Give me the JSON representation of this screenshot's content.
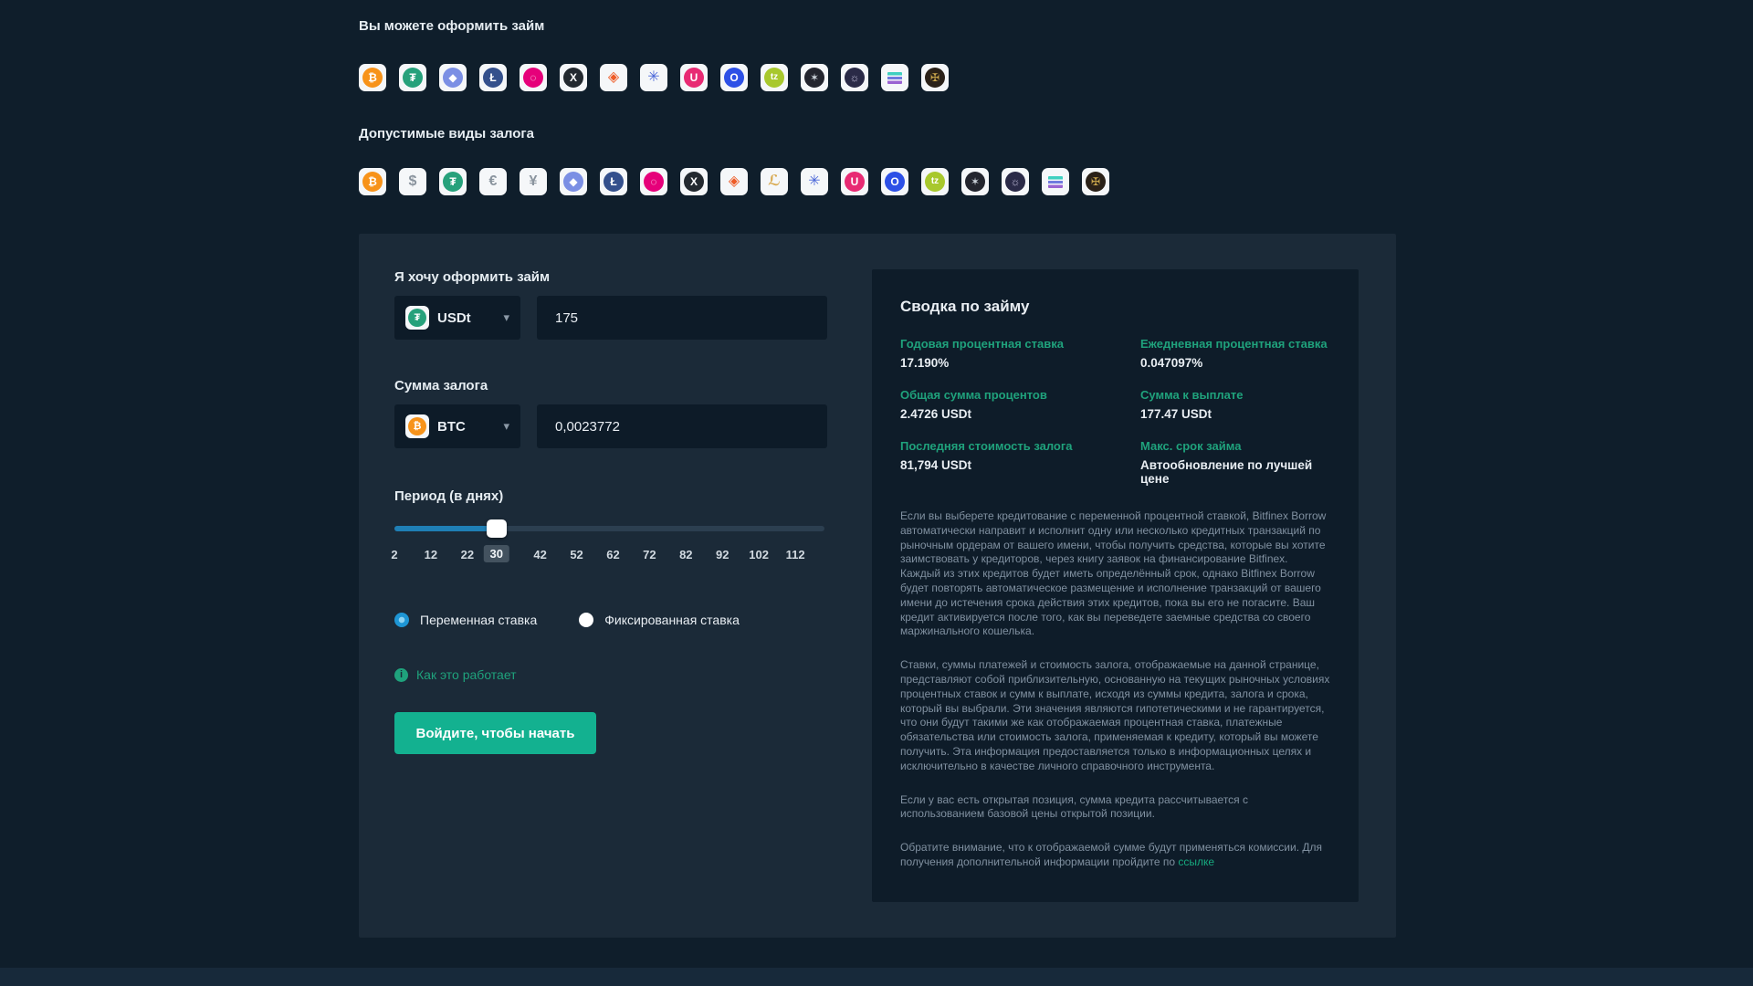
{
  "page": {
    "headline_borrow": "Вы можете оформить займ",
    "headline_collateral": "Допустимые виды залога"
  },
  "coins": {
    "btc": {
      "name": "bitcoin",
      "glyph": "₿",
      "circle": "#f7931a",
      "fg": "#ffffff"
    },
    "usd": {
      "name": "us-dollar",
      "glyph": "$",
      "circle": null,
      "fg": "#8a949e"
    },
    "usdt": {
      "name": "tether",
      "glyph": "₮",
      "circle": "#26a17b",
      "fg": "#ffffff"
    },
    "eur": {
      "name": "euro",
      "glyph": "€",
      "circle": null,
      "fg": "#8a949e"
    },
    "jpy": {
      "name": "yen",
      "glyph": "¥",
      "circle": null,
      "fg": "#8a949e"
    },
    "eth": {
      "name": "ethereum",
      "glyph": "◆",
      "circle": "#7b8fe4",
      "fg": "#ffffff"
    },
    "ltc": {
      "name": "litecoin",
      "glyph": "Ł",
      "circle": "#34508c",
      "fg": "#ffffff"
    },
    "dot": {
      "name": "polkadot",
      "glyph": "◌",
      "circle": "#e6007a",
      "fg": "#ffffff"
    },
    "xrp": {
      "name": "xrp",
      "glyph": "X",
      "circle": "#23292f",
      "fg": "#ffffff"
    },
    "trx": {
      "name": "tron",
      "glyph": "◈",
      "circle": null,
      "fg": "#ee5c28"
    },
    "leo": {
      "name": "leo",
      "glyph": "ℒ",
      "circle": null,
      "fg": "#d8a94f"
    },
    "snow": {
      "name": "snowflake",
      "glyph": "✳",
      "circle": null,
      "fg": "#4a66d8"
    },
    "uni": {
      "name": "uniswap",
      "glyph": "U",
      "circle": "#e82a73",
      "fg": "#ffffff"
    },
    "omg": {
      "name": "omg",
      "glyph": "O",
      "circle": "#2d50e6",
      "fg": "#ffffff"
    },
    "xtz": {
      "name": "tezos",
      "glyph": "tz",
      "circle": "#a8c82d",
      "fg": "#ffffff"
    },
    "eos": {
      "name": "eos",
      "glyph": "✶",
      "circle": "#23252e",
      "fg": "#cfd6dd"
    },
    "atom": {
      "name": "cosmos",
      "glyph": "☼",
      "circle": "#2a2a47",
      "fg": "#c8c4e0"
    },
    "sol": {
      "name": "solana",
      "glyph": "",
      "circle": null,
      "fg": "#3fd0c0",
      "special": "sol-bars"
    },
    "xaut": {
      "name": "tether-gold",
      "glyph": "✠",
      "circle": "#2a2118",
      "fg": "#caa64b"
    }
  },
  "borrow_row": [
    "btc",
    "usdt",
    "eth",
    "ltc",
    "dot",
    "xrp",
    "trx",
    "snow",
    "uni",
    "omg",
    "xtz",
    "eos",
    "atom",
    "sol",
    "xaut"
  ],
  "collateral_row": [
    "btc",
    "usd",
    "usdt",
    "eur",
    "jpy",
    "eth",
    "ltc",
    "dot",
    "xrp",
    "trx",
    "leo",
    "snow",
    "uni",
    "omg",
    "xtz",
    "eos",
    "atom",
    "sol",
    "xaut"
  ],
  "form": {
    "loan": {
      "label": "Я хочу оформить займ",
      "coin": "usdt",
      "coin_label": "USDt",
      "amount": "175"
    },
    "collateral": {
      "label": "Сумма залога",
      "coin": "btc",
      "coin_label": "BTC",
      "amount": "0,0023772"
    },
    "period": {
      "label": "Период (в днях)",
      "min": 2,
      "max": 120,
      "value": 30,
      "ticks": [
        2,
        12,
        22,
        30,
        42,
        52,
        62,
        72,
        82,
        92,
        102,
        112
      ]
    },
    "rate_options": [
      {
        "label": "Переменная ставка",
        "selected": true
      },
      {
        "label": "Фиксированная ставка",
        "selected": false
      }
    ],
    "how_it_works": "Как это работает",
    "info_icon_glyph": "i",
    "cta": "Войдите, чтобы начать"
  },
  "summary": {
    "title": "Сводка по займу",
    "stats": [
      {
        "label": "Годовая процентная ставка",
        "value": "17.190%"
      },
      {
        "label": "Ежедневная процентная ставка",
        "value": "0.047097%"
      },
      {
        "label": "Общая сумма процентов",
        "value": "2.4726 USDt"
      },
      {
        "label": "Сумма к выплате",
        "value": "177.47 USDt"
      },
      {
        "label": "Последняя стоимость залога",
        "value": "81,794 USDt"
      },
      {
        "label": "Макс. срок займа",
        "value": "Автообновление по лучшей цене"
      }
    ],
    "paragraphs": [
      "Если вы выберете кредитование с переменной процентной ставкой, Bitfinex Borrow автоматически направит и исполнит одну или несколько кредитных транзакций по рыночным ордерам от вашего имени, чтобы получить средства, которые вы хотите заимствовать у кредиторов, через книгу заявок на финансирование Bitfinex. Каждый из этих кредитов будет иметь определённый срок, однако Bitfinex Borrow будет повторять автоматическое размещение и исполнение транзакций от вашего имени до истечения срока действия этих кредитов, пока вы его не погасите. Ваш кредит активируется после того, как вы переведете заемные средства со своего маржинального кошелька.",
      "Ставки, суммы платежей и стоимость залога, отображаемые на данной странице, представляют собой приблизительную, основанную на текущих рыночных условиях процентных ставок и сумм к выплате, исходя из суммы кредита, залога и срока, который вы выбрали. Эти значения являются гипотетическими и не гарантируется, что они будут такими же как отображаемая процентная ставка, платежные обязательства или стоимость залога, применяемая к кредиту, который вы можете получить. Эта информация предоставляется только в информационных целях и исключительно в качестве личного справочного инструмента.",
      "Если у вас есть открытая позиция, сумма кредита рассчитывается с использованием базовой цены открытой позиции."
    ],
    "note_prefix": "Обратите внимание, что к отображаемой сумме будут применяться комиссии. Для получения дополнительной информации пройдите по ",
    "note_link": "ссылке"
  },
  "colors": {
    "page_bg": "#0f1e2b",
    "panel_bg": "#1b2a38",
    "summary_bg": "#0e1c29",
    "input_bg": "#0d1b28",
    "accent_green": "#1fa27c",
    "button_green": "#13b190",
    "slider_blue": "#1f7fb5",
    "radio_blue": "#1e96d5"
  }
}
